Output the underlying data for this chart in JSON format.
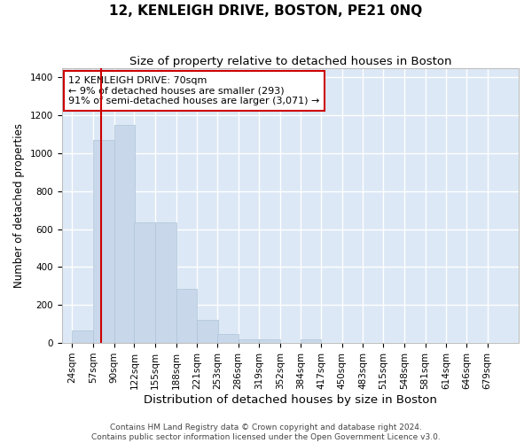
{
  "title": "12, KENLEIGH DRIVE, BOSTON, PE21 0NQ",
  "subtitle": "Size of property relative to detached houses in Boston",
  "xlabel": "Distribution of detached houses by size in Boston",
  "ylabel": "Number of detached properties",
  "bins": [
    24,
    57,
    90,
    122,
    155,
    188,
    221,
    253,
    286,
    319,
    352,
    384,
    417,
    450,
    483,
    515,
    548,
    581,
    614,
    646,
    679
  ],
  "values": [
    65,
    1070,
    1150,
    635,
    635,
    285,
    120,
    45,
    20,
    20,
    0,
    20,
    0,
    0,
    0,
    0,
    0,
    0,
    0,
    0,
    0
  ],
  "bar_color": "#c8d8ea",
  "bar_edge_color": "#aec4d8",
  "red_line_x": 70,
  "ylim": [
    0,
    1450
  ],
  "yticks": [
    0,
    200,
    400,
    600,
    800,
    1000,
    1200,
    1400
  ],
  "annotation_text": "12 KENLEIGH DRIVE: 70sqm\n← 9% of detached houses are smaller (293)\n91% of semi-detached houses are larger (3,071) →",
  "annotation_box_facecolor": "#ffffff",
  "annotation_box_edgecolor": "#cc0000",
  "footnote1": "Contains HM Land Registry data © Crown copyright and database right 2024.",
  "footnote2": "Contains public sector information licensed under the Open Government Licence v3.0.",
  "bg_color": "#dce8f5",
  "fig_bg_color": "#ffffff",
  "grid_color": "#ffffff",
  "title_fontsize": 11,
  "subtitle_fontsize": 9.5,
  "xlabel_fontsize": 9.5,
  "ylabel_fontsize": 8.5,
  "tick_fontsize": 7.5,
  "annot_fontsize": 8,
  "footnote_fontsize": 6.5
}
